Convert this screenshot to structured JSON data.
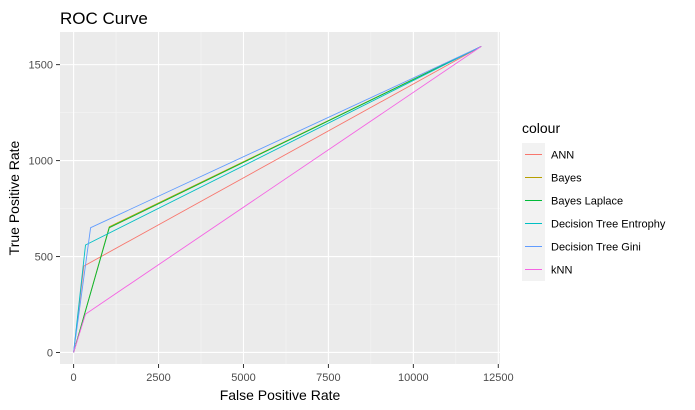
{
  "chart_data": {
    "type": "line",
    "title": "ROC Curve",
    "xlabel": "False Positive Rate",
    "ylabel": "True Positive Rate",
    "xlim": [
      -400,
      12550
    ],
    "ylim": [
      -60,
      1670
    ],
    "x_ticks": [
      0,
      2500,
      5000,
      7500,
      10000,
      12500
    ],
    "y_ticks": [
      0,
      500,
      1000,
      1500
    ],
    "x_tick_labels": [
      "0",
      "2500",
      "5000",
      "7500",
      "10000",
      "12500"
    ],
    "y_tick_labels": [
      "0",
      "500",
      "1000",
      "1500"
    ],
    "grid": true,
    "legend": {
      "title": "colour",
      "placement": "right"
    },
    "series": [
      {
        "name": "ANN",
        "color": "#F8766D",
        "points": [
          [
            0,
            0
          ],
          [
            300,
            450
          ],
          [
            12000,
            1595
          ]
        ]
      },
      {
        "name": "Bayes",
        "color": "#B79F00",
        "points": [
          [
            0,
            0
          ],
          [
            1050,
            655
          ],
          [
            12000,
            1595
          ]
        ]
      },
      {
        "name": "Bayes Laplace",
        "color": "#00BA38",
        "points": [
          [
            0,
            0
          ],
          [
            1050,
            650
          ],
          [
            12000,
            1595
          ]
        ]
      },
      {
        "name": "Decision Tree Entrophy",
        "color": "#00BFC4",
        "points": [
          [
            0,
            0
          ],
          [
            350,
            560
          ],
          [
            12000,
            1595
          ]
        ]
      },
      {
        "name": "Decision Tree Gini",
        "color": "#619CFF",
        "points": [
          [
            0,
            0
          ],
          [
            500,
            650
          ],
          [
            12000,
            1595
          ]
        ]
      },
      {
        "name": "kNN",
        "color": "#F564E3",
        "points": [
          [
            0,
            0
          ],
          [
            350,
            200
          ],
          [
            12000,
            1595
          ]
        ]
      }
    ]
  }
}
